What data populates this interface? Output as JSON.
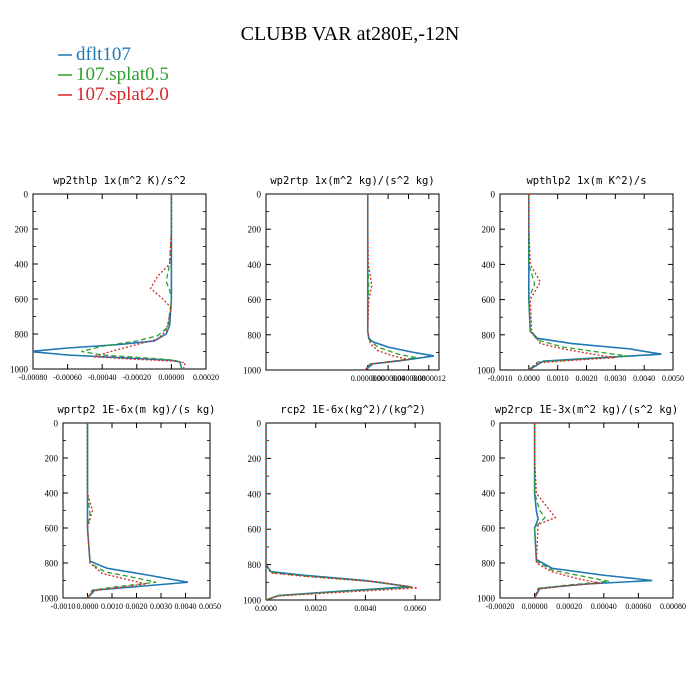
{
  "title": "CLUBB VAR at280E,-12N",
  "legend": [
    {
      "label": "dflt107",
      "color": "#1f77b4"
    },
    {
      "label": "107.splat0.5",
      "color": "#2ca02c"
    },
    {
      "label": "107.splat2.0",
      "color": "#d62728"
    }
  ],
  "chart_data": [
    {
      "type": "line",
      "title": "wp2thlp  1x(m^2 K)/s^2",
      "xlim": [
        -0.0008,
        0.0002
      ],
      "ylim": [
        1000,
        0
      ],
      "xticks": [
        "-0.00080",
        "-0.00060",
        "-0.00040",
        "-0.00020",
        "0.00000",
        "0.00020"
      ],
      "yticks": [
        "0",
        "200",
        "400",
        "600",
        "800",
        "1000"
      ],
      "series": [
        {
          "name": "dflt107",
          "style": "solid",
          "x": [
            0.0,
            0.0,
            -0.0,
            0.0,
            0.0,
            -1e-05,
            -3e-05,
            -0.0001,
            -0.0003,
            -0.0006,
            -0.00082,
            -0.0006,
            -0.0002,
            0.0,
            5e-05,
            6e-05
          ],
          "y": [
            0,
            200,
            400,
            500,
            600,
            750,
            800,
            840,
            860,
            880,
            900,
            920,
            940,
            950,
            960,
            1000
          ]
        },
        {
          "name": "107.splat0.5",
          "style": "dashed",
          "x": [
            0.0,
            0.0,
            -1e-05,
            -3e-05,
            -1e-05,
            0.0,
            -2e-05,
            -8e-05,
            -0.0002,
            -0.0004,
            -0.00052,
            -0.0004,
            -0.0001,
            2e-05,
            5e-05,
            6e-05
          ],
          "y": [
            0,
            200,
            400,
            500,
            550,
            600,
            760,
            810,
            840,
            870,
            900,
            920,
            940,
            950,
            960,
            1000
          ]
        },
        {
          "name": "107.splat2.0",
          "style": "dotted",
          "x": [
            0.0,
            0.0,
            -1e-05,
            -8e-05,
            -0.00012,
            -6e-05,
            0.0,
            -3e-05,
            -8e-05,
            -0.0002,
            -0.00035,
            -0.00045,
            -0.0002,
            2e-05,
            8e-05,
            7e-05
          ],
          "y": [
            0,
            200,
            400,
            470,
            540,
            590,
            650,
            780,
            830,
            860,
            900,
            930,
            945,
            955,
            965,
            1000
          ]
        }
      ]
    },
    {
      "type": "line",
      "title": "wp2rtp  1x(m^2 kg)/(s^2 kg)",
      "xlim": [
        -2e-06,
        1.4e-06
      ],
      "ylim": [
        1000,
        0
      ],
      "xticks": [
        "0.0000000",
        "0.0000004",
        "0.0000008",
        "0.0000012"
      ],
      "xtickvals": [
        0,
        4e-07,
        8e-07,
        1.2e-06
      ],
      "yticks": [
        "0",
        "200",
        "400",
        "600",
        "800",
        "1000"
      ],
      "series": [
        {
          "name": "dflt107",
          "style": "solid",
          "x": [
            0,
            0,
            0,
            0,
            0,
            2e-08,
            1e-07,
            4e-07,
            9e-07,
            1.3e-06,
            7e-07,
            1e-07,
            -5e-08
          ],
          "y": [
            0,
            200,
            400,
            600,
            780,
            820,
            840,
            870,
            900,
            920,
            945,
            965,
            1000
          ]
        },
        {
          "name": "107.splat0.5",
          "style": "dashed",
          "x": [
            0,
            0,
            0,
            2e-08,
            0,
            0,
            3e-08,
            2e-07,
            6e-07,
            9.5e-07,
            5e-07,
            5e-08,
            -5e-08
          ],
          "y": [
            0,
            200,
            400,
            540,
            600,
            780,
            830,
            870,
            910,
            930,
            950,
            965,
            1000
          ]
        },
        {
          "name": "107.splat2.0",
          "style": "dotted",
          "x": [
            0,
            0,
            1e-08,
            8e-08,
            2e-08,
            0,
            5e-08,
            2e-07,
            5e-07,
            8e-07,
            4e-07,
            5e-08,
            -5e-08
          ],
          "y": [
            0,
            200,
            400,
            520,
            600,
            780,
            850,
            890,
            920,
            940,
            955,
            965,
            1000
          ]
        }
      ]
    },
    {
      "type": "line",
      "title": "wpthlp2  1x(m K^2)/s",
      "xlim": [
        -0.001,
        0.005
      ],
      "ylim": [
        1000,
        0
      ],
      "xticks": [
        "-0.0010",
        "0.0000",
        "0.0010",
        "0.0020",
        "0.0030",
        "0.0040",
        "0.0050"
      ],
      "yticks": [
        "0",
        "200",
        "400",
        "600",
        "800",
        "1000"
      ],
      "series": [
        {
          "name": "dflt107",
          "style": "solid",
          "x": [
            0,
            0,
            0,
            0,
            0,
            5e-05,
            0.0003,
            0.0015,
            0.0035,
            0.0046,
            0.0025,
            0.0005,
            0.0
          ],
          "y": [
            0,
            200,
            400,
            520,
            600,
            780,
            820,
            850,
            880,
            910,
            930,
            950,
            1000
          ]
        },
        {
          "name": "107.splat0.5",
          "style": "dashed",
          "x": [
            0,
            0,
            0,
            0.0002,
            0,
            5e-05,
            0.0003,
            0.0012,
            0.0025,
            0.0034,
            0.0018,
            0.0003,
            0.0
          ],
          "y": [
            0,
            200,
            400,
            510,
            600,
            780,
            830,
            870,
            900,
            920,
            940,
            955,
            1000
          ]
        },
        {
          "name": "107.splat2.0",
          "style": "dotted",
          "x": [
            0,
            0,
            5e-05,
            0.0004,
            5e-05,
            0.0001,
            0.0004,
            0.0012,
            0.0022,
            0.003,
            0.0015,
            0.0003,
            0.0
          ],
          "y": [
            0,
            200,
            400,
            500,
            600,
            780,
            850,
            880,
            910,
            930,
            945,
            960,
            1000
          ]
        }
      ]
    },
    {
      "type": "line",
      "title": "wprtp2  1E-6x(m kg)/(s kg)",
      "xlim": [
        -0.001,
        0.005
      ],
      "ylim": [
        1000,
        0
      ],
      "xticks": [
        "-0.0010",
        "0.0000",
        "0.0010",
        "0.0020",
        "0.0030",
        "0.0040",
        "0.0050"
      ],
      "yticks": [
        "0",
        "200",
        "400",
        "600",
        "800",
        "1000"
      ],
      "series": [
        {
          "name": "dflt107",
          "style": "solid",
          "x": [
            0,
            0,
            0,
            0,
            0,
            0.0001,
            0.0008,
            0.0025,
            0.0041,
            0.002,
            0.0003,
            0.0
          ],
          "y": [
            0,
            200,
            400,
            500,
            600,
            790,
            830,
            870,
            910,
            935,
            955,
            1000
          ]
        },
        {
          "name": "107.splat0.5",
          "style": "dashed",
          "x": [
            0,
            0,
            0,
            0.0001,
            0,
            0.0001,
            0.0007,
            0.0018,
            0.0028,
            0.0012,
            0.0002,
            0.0
          ],
          "y": [
            0,
            200,
            400,
            520,
            600,
            800,
            850,
            880,
            910,
            935,
            955,
            1000
          ]
        },
        {
          "name": "107.splat2.0",
          "style": "dotted",
          "x": [
            0,
            0,
            0,
            0.0002,
            0,
            0.0001,
            0.0006,
            0.0015,
            0.0024,
            0.001,
            0.0002,
            0.0
          ],
          "y": [
            0,
            200,
            400,
            500,
            600,
            800,
            860,
            890,
            920,
            945,
            960,
            1000
          ]
        }
      ]
    },
    {
      "type": "line",
      "title": "rcp2  1E-6x(kg^2)/(kg^2)",
      "xlim": [
        0,
        0.007
      ],
      "ylim": [
        1000,
        0
      ],
      "xticks": [
        "0.0000",
        "0.0020",
        "0.0040",
        "0.0060"
      ],
      "xtickvals": [
        0,
        0.002,
        0.004,
        0.006
      ],
      "yticks": [
        "0",
        "200",
        "400",
        "600",
        "800",
        "1000"
      ],
      "series": [
        {
          "name": "dflt107",
          "style": "solid",
          "x": [
            0,
            0,
            0,
            0.0002,
            0.0015,
            0.004,
            0.0058,
            0.003,
            0.0005,
            0.0
          ],
          "y": [
            0,
            400,
            800,
            840,
            860,
            890,
            925,
            950,
            975,
            1000
          ]
        },
        {
          "name": "107.splat0.5",
          "style": "dashed",
          "x": [
            0,
            0,
            0,
            0.0002,
            0.0016,
            0.0042,
            0.0059,
            0.003,
            0.0005,
            0.0
          ],
          "y": [
            0,
            400,
            800,
            845,
            865,
            895,
            928,
            952,
            975,
            1000
          ]
        },
        {
          "name": "107.splat2.0",
          "style": "dotted",
          "x": [
            0,
            0,
            0,
            0.0002,
            0.0017,
            0.0045,
            0.0061,
            0.0032,
            0.0005,
            0.0
          ],
          "y": [
            0,
            400,
            800,
            848,
            868,
            898,
            932,
            955,
            977,
            1000
          ]
        }
      ]
    },
    {
      "type": "line",
      "title": "wp2rcp  1E-3x(m^2 kg)/(s^2 kg)",
      "xlim": [
        -0.0002,
        0.0008
      ],
      "ylim": [
        1000,
        0
      ],
      "xticks": [
        "-0.00020",
        "0.00000",
        "0.00020",
        "0.00040",
        "0.00060",
        "0.00080"
      ],
      "yticks": [
        "0",
        "200",
        "400",
        "600",
        "800",
        "1000"
      ],
      "series": [
        {
          "name": "dflt107",
          "style": "solid",
          "x": [
            0,
            0,
            0,
            1e-05,
            2e-05,
            0,
            1e-05,
            0.0001,
            0.0004,
            0.00068,
            0.0003,
            3e-05,
            0.0
          ],
          "y": [
            0,
            200,
            400,
            500,
            550,
            600,
            780,
            830,
            870,
            900,
            920,
            945,
            1000
          ]
        },
        {
          "name": "107.splat0.5",
          "style": "dashed",
          "x": [
            0,
            0,
            0,
            3e-05,
            6e-05,
            0,
            1e-05,
            0.0001,
            0.0003,
            0.00043,
            0.0002,
            2e-05,
            0.0
          ],
          "y": [
            0,
            200,
            400,
            500,
            540,
            600,
            790,
            840,
            880,
            905,
            925,
            945,
            1000
          ]
        },
        {
          "name": "107.splat2.0",
          "style": "dotted",
          "x": [
            0,
            0,
            1e-05,
            8e-05,
            0.00012,
            2e-05,
            1e-05,
            0.0001,
            0.00025,
            0.00038,
            0.00018,
            2e-05,
            0.0
          ],
          "y": [
            0,
            200,
            400,
            490,
            540,
            580,
            800,
            850,
            890,
            915,
            930,
            950,
            1000
          ]
        }
      ]
    }
  ]
}
